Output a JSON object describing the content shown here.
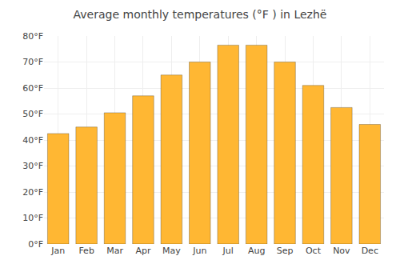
{
  "chart_data": {
    "type": "bar",
    "title": "Average monthly temperatures (°F ) in Lezhë",
    "categories": [
      "Jan",
      "Feb",
      "Mar",
      "Apr",
      "May",
      "Jun",
      "Jul",
      "Aug",
      "Sep",
      "Oct",
      "Nov",
      "Dec"
    ],
    "values": [
      42.5,
      45,
      50.5,
      57,
      65,
      70,
      76.5,
      76.5,
      70,
      61,
      52.5,
      46
    ],
    "color": "#FFB733",
    "ylim": [
      0,
      80
    ],
    "yticks": [
      {
        "value": 0,
        "label": "0°F"
      },
      {
        "value": 10,
        "label": "10°F"
      },
      {
        "value": 20,
        "label": "20°F"
      },
      {
        "value": 30,
        "label": "30°F"
      },
      {
        "value": 40,
        "label": "40°F"
      },
      {
        "value": 50,
        "label": "50°F"
      },
      {
        "value": 60,
        "label": "60°F"
      },
      {
        "value": 70,
        "label": "70°F"
      },
      {
        "value": 80,
        "label": "80°F"
      }
    ],
    "grid": true
  }
}
